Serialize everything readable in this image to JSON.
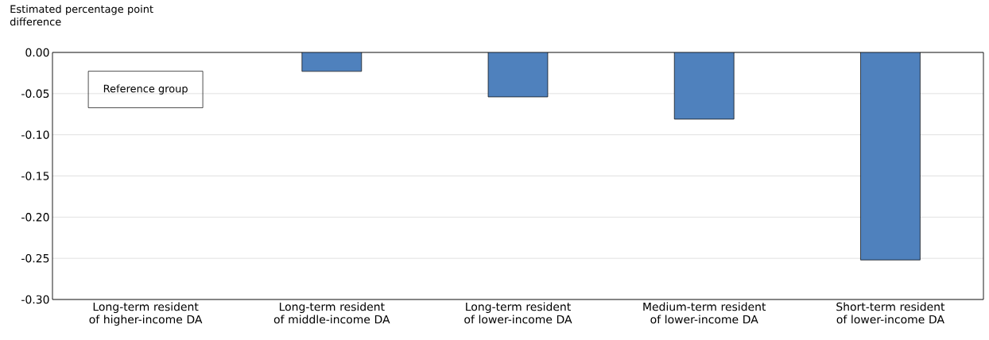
{
  "chart_data": {
    "type": "bar",
    "ylabel": "Estimated percentage point difference",
    "categories": [
      "Long-term resident of higher-income DA",
      "Long-term resident of middle-income DA",
      "Long-term resident of lower-income DA",
      "Medium-term resident of lower-income DA",
      "Short-term resident of lower-income DA"
    ],
    "values": [
      null,
      -0.023,
      -0.054,
      -0.081,
      -0.252
    ],
    "color": "#4f81bd",
    "ylim": [
      -0.3,
      0.0
    ],
    "yticks": [
      {
        "value": 0,
        "label": "0.00"
      },
      {
        "value": -0.05,
        "label": "-0.05"
      },
      {
        "value": -0.1,
        "label": "-0.10"
      },
      {
        "value": -0.15,
        "label": "-0.15"
      },
      {
        "value": -0.2,
        "label": "-0.20"
      },
      {
        "value": -0.25,
        "label": "-0.25"
      },
      {
        "value": -0.3,
        "label": "-0.30"
      }
    ],
    "grid": "y",
    "annotations": [
      "Reference group"
    ]
  }
}
